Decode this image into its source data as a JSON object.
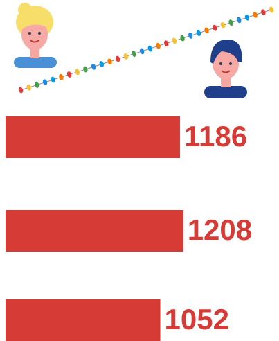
{
  "chart_data": {
    "type": "bar",
    "orientation": "horizontal",
    "values": [
      1186,
      1208,
      1052
    ],
    "color": "#d63b36"
  }
}
